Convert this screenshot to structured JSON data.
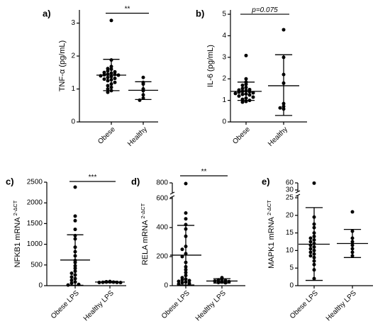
{
  "chart_data": [
    {
      "type": "scatter",
      "panel": "a)",
      "ylabel": "TNF-α (pg/mL)",
      "yticks": [
        0,
        1,
        2,
        3
      ],
      "ylim": [
        0,
        3.4
      ],
      "categories": [
        "Obese",
        "Healthy"
      ],
      "groups": [
        {
          "name": "Obese",
          "mean": 1.42,
          "sd_low": 0.95,
          "sd_high": 1.9,
          "values": [
            3.08,
            1.88,
            1.68,
            1.62,
            1.6,
            1.55,
            1.52,
            1.5,
            1.48,
            1.45,
            1.44,
            1.43,
            1.42,
            1.4,
            1.38,
            1.35,
            1.32,
            1.3,
            1.28,
            1.25,
            1.2,
            1.15,
            1.1,
            1.05,
            1.0,
            0.95,
            0.9
          ]
        },
        {
          "name": "Healthy",
          "mean": 0.96,
          "sd_low": 0.68,
          "sd_high": 1.22,
          "values": [
            1.35,
            1.2,
            1.15,
            1.0,
            0.95,
            0.82,
            0.72,
            0.66
          ]
        }
      ],
      "significance": {
        "label": "**",
        "from": "Obese",
        "to": "Healthy",
        "y": 3.3
      }
    },
    {
      "type": "scatter",
      "panel": "b)",
      "ylabel": "IL-6 (pg/mL)",
      "yticks": [
        0,
        1,
        2,
        3,
        4,
        5
      ],
      "ylim": [
        0,
        5.2
      ],
      "categories": [
        "Obese",
        "Healthy"
      ],
      "groups": [
        {
          "name": "Obese",
          "mean": 1.42,
          "sd_low": 1.0,
          "sd_high": 1.85,
          "values": [
            3.08,
            2.0,
            1.85,
            1.75,
            1.7,
            1.6,
            1.55,
            1.5,
            1.48,
            1.45,
            1.42,
            1.4,
            1.38,
            1.35,
            1.32,
            1.3,
            1.28,
            1.25,
            1.2,
            1.15,
            1.1,
            1.05,
            1.0,
            0.95,
            0.92
          ]
        },
        {
          "name": "Healthy",
          "mean": 1.68,
          "sd_low": 0.3,
          "sd_high": 3.12,
          "values": [
            4.28,
            3.0,
            2.2,
            1.8,
            0.85,
            0.72,
            0.65,
            0.6
          ]
        }
      ],
      "significance": {
        "label": "p=0.075",
        "from": "Obese",
        "to": "Healthy",
        "y": 5.0
      }
    },
    {
      "type": "scatter",
      "panel": "c)",
      "ylabel": "NFKB1 mRNA",
      "ylabel_sup": "2-ΔCT",
      "yticks": [
        0,
        500,
        1000,
        1500,
        2000,
        2500
      ],
      "ylim": [
        0,
        2500
      ],
      "categories": [
        "Obese LPS",
        "Healthy LPS"
      ],
      "groups": [
        {
          "name": "Obese LPS",
          "mean": 620,
          "sd_low": 10,
          "sd_high": 1230,
          "values": [
            2380,
            1680,
            1570,
            1360,
            1210,
            1130,
            930,
            820,
            720,
            610,
            560,
            480,
            420,
            350,
            300,
            260,
            210,
            170,
            130,
            90,
            60,
            30,
            15
          ]
        },
        {
          "name": "Healthy LPS",
          "mean": 88,
          "sd_low": 70,
          "sd_high": 105,
          "values": [
            100,
            95,
            90,
            88,
            85,
            82,
            80,
            78,
            75
          ]
        }
      ],
      "significance": {
        "label": "***",
        "from": "Obese LPS",
        "to": "Healthy LPS",
        "y": 2500
      }
    },
    {
      "type": "scatter",
      "panel": "d)",
      "ylabel": "RELA mRNA",
      "ylabel_sup": "2-ΔCT",
      "yticks": [
        0,
        200,
        400,
        600
      ],
      "yticks_upper": [
        600,
        800
      ],
      "ylim": [
        0,
        800
      ],
      "axis_break": true,
      "categories": [
        "Obese LPS",
        "Healthy LPS"
      ],
      "groups": [
        {
          "name": "Obese LPS",
          "mean": 210,
          "sd_low": 5,
          "sd_high": 415,
          "values": [
            780,
            500,
            460,
            420,
            390,
            340,
            270,
            250,
            220,
            200,
            160,
            130,
            110,
            90,
            70,
            55,
            45,
            40,
            35,
            30,
            25,
            20,
            15,
            10
          ]
        },
        {
          "name": "Healthy LPS",
          "mean": 32,
          "sd_low": 18,
          "sd_high": 48,
          "values": [
            55,
            45,
            40,
            35,
            32,
            28,
            25,
            22,
            20
          ]
        }
      ],
      "significance": {
        "label": "**",
        "from": "Obese LPS",
        "to": "Healthy LPS",
        "y": 850
      }
    },
    {
      "type": "scatter",
      "panel": "e)",
      "ylabel": "MAPK1 mRNA",
      "ylabel_sup": "2-ΔCT",
      "yticks": [
        0,
        5,
        10,
        15,
        20,
        25
      ],
      "yticks_upper": [
        30,
        60
      ],
      "ylim": [
        0,
        60
      ],
      "axis_break": true,
      "categories": [
        "Obese LPS",
        "Healthy LPS"
      ],
      "groups": [
        {
          "name": "Obese LPS",
          "mean": 11.8,
          "sd_low": 1.5,
          "sd_high": 22.2,
          "values": [
            59,
            19.5,
            17.5,
            16.5,
            15,
            14,
            13.5,
            13,
            12.5,
            12,
            11.5,
            11,
            10.5,
            10,
            9.5,
            9,
            8.5,
            8,
            7,
            6,
            4.5,
            2
          ]
        },
        {
          "name": "Healthy LPS",
          "mean": 12.0,
          "sd_low": 8.0,
          "sd_high": 16.0,
          "values": [
            21,
            15.5,
            13.5,
            12.5,
            11.5,
            10.5,
            9.5,
            8.5
          ]
        }
      ],
      "significance": null
    }
  ]
}
